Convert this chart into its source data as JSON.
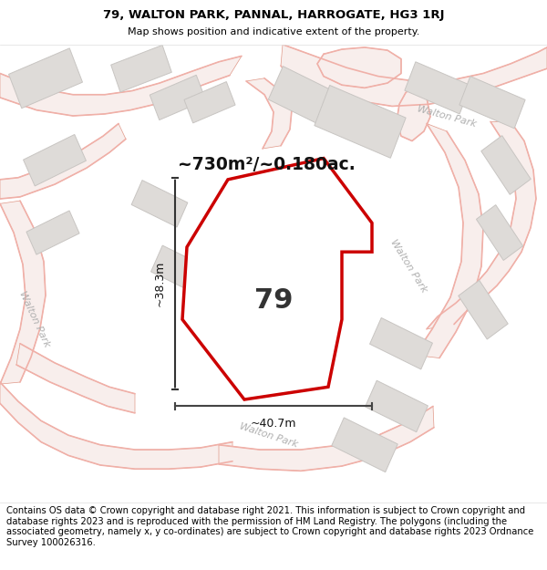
{
  "title_line1": "79, WALTON PARK, PANNAL, HARROGATE, HG3 1RJ",
  "title_line2": "Map shows position and indicative extent of the property.",
  "footer_text": "Contains OS data © Crown copyright and database right 2021. This information is subject to Crown copyright and database rights 2023 and is reproduced with the permission of HM Land Registry. The polygons (including the associated geometry, namely x, y co-ordinates) are subject to Crown copyright and database rights 2023 Ordnance Survey 100026316.",
  "area_label": "~730m²/~0.180ac.",
  "property_number": "79",
  "dim_width": "~40.7m",
  "dim_height": "~38.3m",
  "map_bg": "#ffffff",
  "road_line_color": "#f0b0a8",
  "road_fill_color": "#f5e8e6",
  "building_fill": "#dedbd8",
  "building_stroke": "#c8c5c2",
  "red_polygon_color": "#cc0000",
  "title_fontsize": 10,
  "footer_fontsize": 7.5
}
